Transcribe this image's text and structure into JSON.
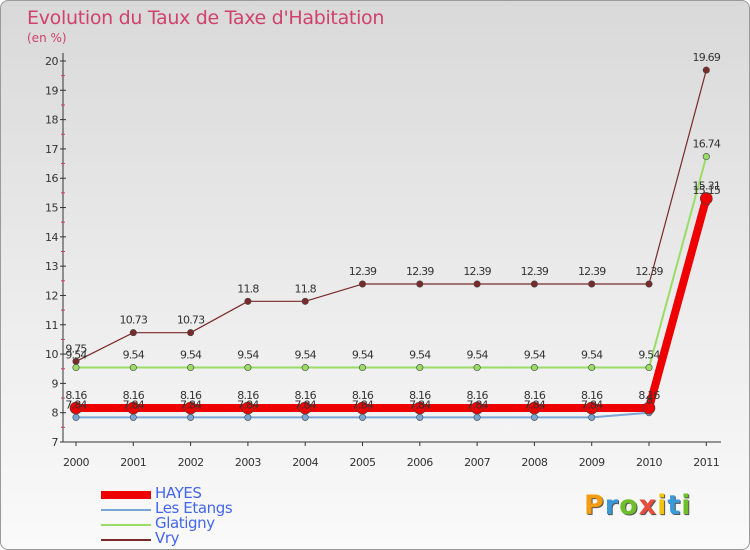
{
  "title": "Evolution du Taux de Taxe d'Habitation",
  "subtitle": "(en %)",
  "logo": {
    "text": "Proxiti",
    "letters": [
      {
        "ch": "P",
        "color": "#f39c12"
      },
      {
        "ch": "r",
        "color": "#3a9ad9"
      },
      {
        "ch": "o",
        "color": "#6fbf2a"
      },
      {
        "ch": "x",
        "color": "#e74c3c"
      },
      {
        "ch": "i",
        "color": "#f1c40f"
      },
      {
        "ch": "t",
        "color": "#3a9ad9"
      },
      {
        "ch": "i",
        "color": "#6fbf2a"
      }
    ]
  },
  "chart_data": {
    "type": "line",
    "x": [
      "2000",
      "2001",
      "2002",
      "2003",
      "2004",
      "2005",
      "2006",
      "2007",
      "2008",
      "2009",
      "2010",
      "2011"
    ],
    "ylim": [
      7,
      20
    ],
    "yticks": [
      7,
      8,
      9,
      10,
      11,
      12,
      13,
      14,
      15,
      16,
      17,
      18,
      19,
      20
    ],
    "grid": false,
    "legend_position": "bottom-left",
    "series": [
      {
        "name": "HAYES",
        "color": "#ee0000",
        "values": [
          8.16,
          8.16,
          8.16,
          8.16,
          8.16,
          8.16,
          8.16,
          8.16,
          8.16,
          8.16,
          8.16,
          15.31
        ],
        "labels": [
          "8.16",
          "8.16",
          "8.16",
          "8.16",
          "8.16",
          "8.16",
          "8.16",
          "8.16",
          "8.16",
          "8.16",
          "8.16",
          "15.31"
        ]
      },
      {
        "name": "Les Etangs",
        "color": "#7aa6d6",
        "values": [
          7.84,
          7.84,
          7.84,
          7.84,
          7.84,
          7.84,
          7.84,
          7.84,
          7.84,
          7.84,
          8.0,
          15.15
        ],
        "labels": [
          "7.84",
          "7.84",
          "7.84",
          "7.84",
          "7.84",
          "7.84",
          "7.84",
          "7.84",
          "7.84",
          "7.84",
          "8",
          "15.15"
        ]
      },
      {
        "name": "Glatigny",
        "color": "#99dd66",
        "values": [
          9.54,
          9.54,
          9.54,
          9.54,
          9.54,
          9.54,
          9.54,
          9.54,
          9.54,
          9.54,
          9.54,
          16.74
        ],
        "labels": [
          "9.54",
          "9.54",
          "9.54",
          "9.54",
          "9.54",
          "9.54",
          "9.54",
          "9.54",
          "9.54",
          "9.54",
          "9.54",
          "16.74"
        ]
      },
      {
        "name": "Vry",
        "color": "#7a2a2a",
        "values": [
          9.75,
          10.73,
          10.73,
          11.8,
          11.8,
          12.39,
          12.39,
          12.39,
          12.39,
          12.39,
          12.39,
          19.69
        ],
        "labels": [
          "9.75",
          "10.73",
          "10.73",
          "11.8",
          "11.8",
          "12.39",
          "12.39",
          "12.39",
          "12.39",
          "12.39",
          "12.39",
          "19.69"
        ]
      }
    ]
  }
}
